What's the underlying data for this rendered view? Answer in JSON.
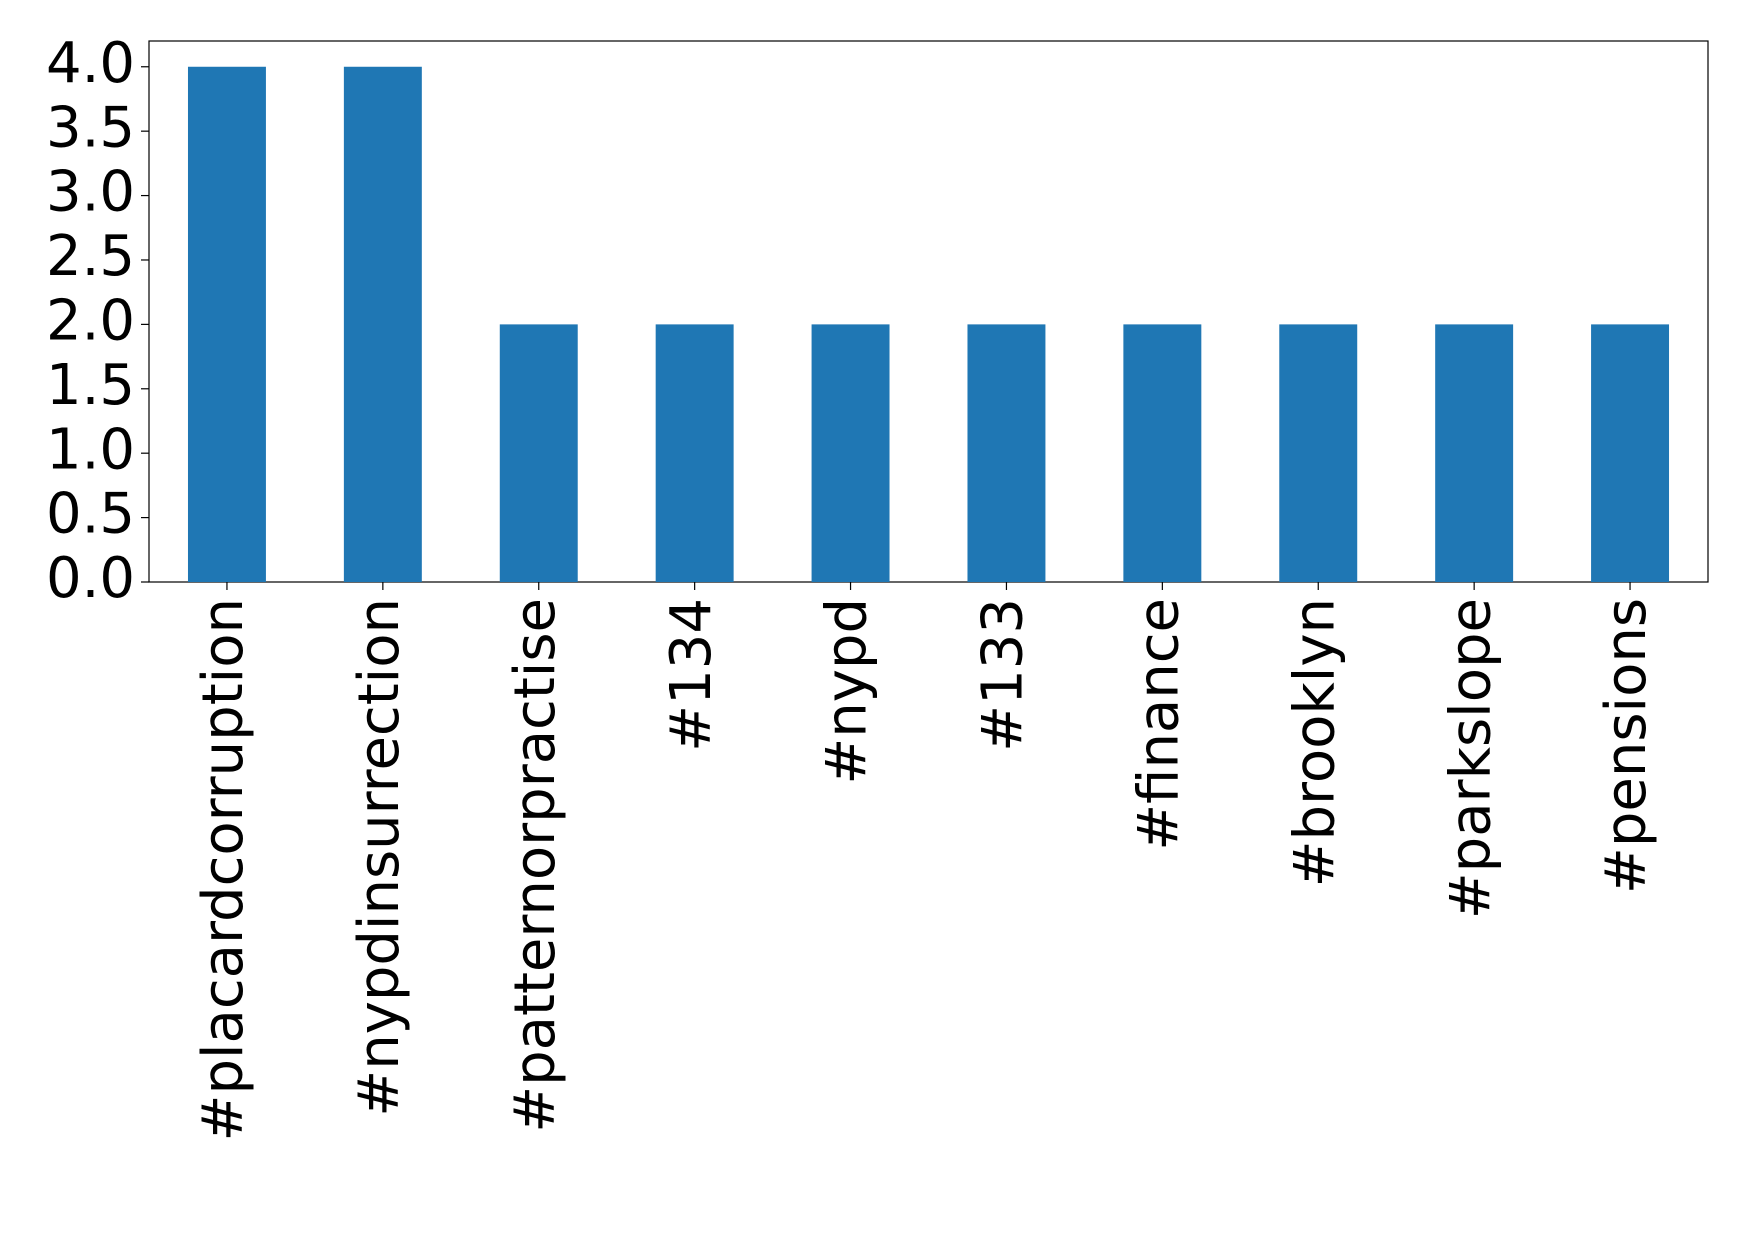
{
  "chart_data": {
    "type": "bar",
    "categories": [
      "#placardcorruption",
      "#nypdinsurrection",
      "#patternorpractise",
      "#134",
      "#nypd",
      "#133",
      "#finance",
      "#brooklyn",
      "#parkslope",
      "#pensions"
    ],
    "values": [
      4,
      4,
      2,
      2,
      2,
      2,
      2,
      2,
      2,
      2
    ],
    "color": "#1f77b4",
    "ylim": [
      0,
      4.2
    ],
    "yticks": [
      {
        "value": 0,
        "label": "0.0"
      },
      0.5,
      {
        "value": 1,
        "label": "1.0"
      },
      1.5,
      {
        "value": 2,
        "label": "2.0"
      },
      2.5,
      {
        "value": 3,
        "label": "3.0"
      },
      3.5,
      {
        "value": 4,
        "label": "4.0"
      }
    ],
    "grid": false
  }
}
